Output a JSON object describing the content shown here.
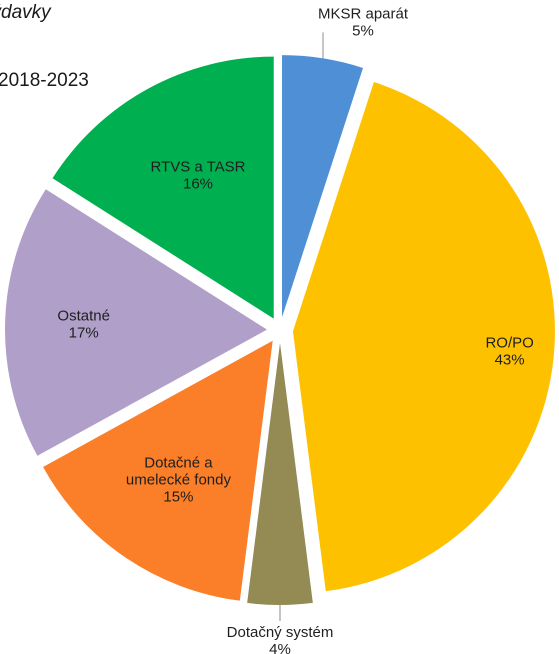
{
  "chart_data": {
    "type": "pie",
    "title_lines": [
      "výdavky",
      "2018-2023"
    ],
    "slices": [
      {
        "label": "MKSR aparát",
        "percent_label": "5%",
        "value": 5,
        "color": "#4f8fd6",
        "label_placement": "outside-top"
      },
      {
        "label": "RO/PO",
        "percent_label": "43%",
        "value": 43,
        "color": "#fec100",
        "label_placement": "inside"
      },
      {
        "label": "Dotačný systém",
        "percent_label": "4%",
        "value": 4,
        "color": "#948a54",
        "label_placement": "outside-bottom"
      },
      {
        "label": "Dotačné a umelecké fondy",
        "label_lines": [
          "Dotačné a",
          "umelecké fondy"
        ],
        "percent_label": "15%",
        "value": 15,
        "color": "#fb7e29",
        "label_placement": "inside"
      },
      {
        "label": "Ostatné",
        "percent_label": "17%",
        "value": 17,
        "color": "#b0a0c9",
        "label_placement": "inside"
      },
      {
        "label": "RTVS a TASR",
        "percent_label": "16%",
        "value": 16,
        "color": "#00b050",
        "label_placement": "inside"
      }
    ],
    "start_at": "12 o'clock",
    "direction": "clockwise",
    "exploded": true,
    "legend": "none"
  }
}
